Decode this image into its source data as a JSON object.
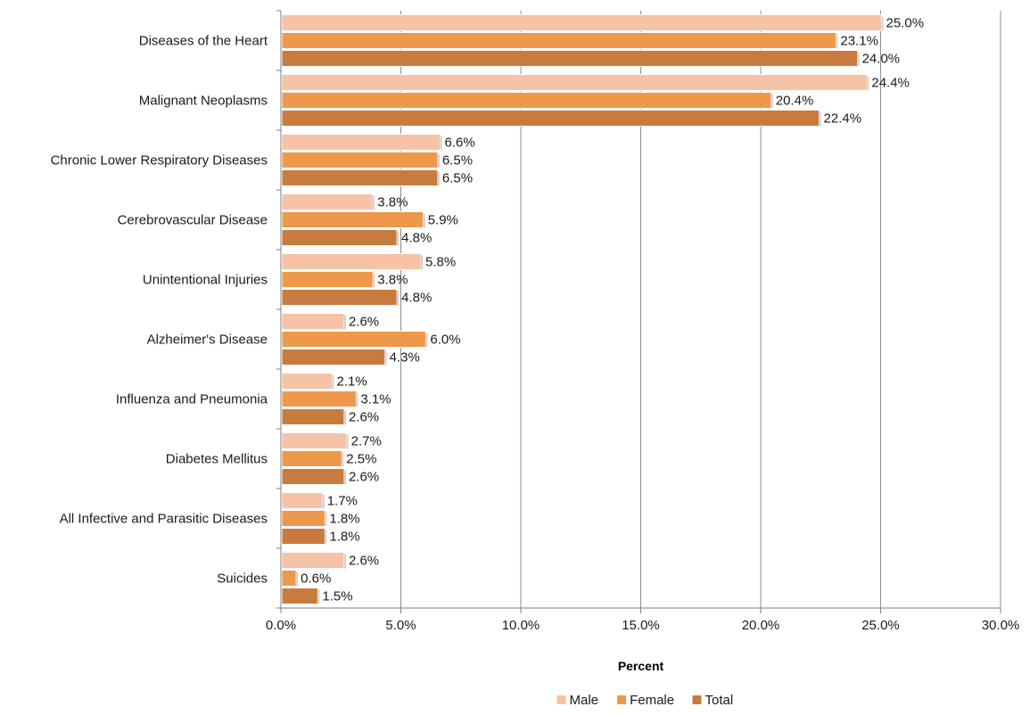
{
  "chart_data": {
    "type": "bar",
    "orientation": "horizontal",
    "categories": [
      "Diseases of the Heart",
      "Malignant Neoplasms",
      "Chronic Lower Respiratory Diseases",
      "Cerebrovascular Disease",
      "Unintentional Injuries",
      "Alzheimer's Disease",
      "Influenza and Pneumonia",
      "Diabetes Mellitus",
      "All Infective and Parasitic Diseases",
      "Suicides"
    ],
    "series": [
      {
        "name": "Male",
        "color": "#F6C3A6",
        "values": [
          25.0,
          24.4,
          6.6,
          3.8,
          5.8,
          2.6,
          2.1,
          2.7,
          1.7,
          2.6
        ],
        "labels": [
          "25.0%",
          "24.4%",
          "6.6%",
          "3.8%",
          "5.8%",
          "2.6%",
          "2.1%",
          "2.7%",
          "1.7%",
          "2.6%"
        ]
      },
      {
        "name": "Female",
        "color": "#EE984B",
        "values": [
          23.1,
          20.4,
          6.5,
          5.9,
          3.8,
          6.0,
          3.1,
          2.5,
          1.8,
          0.6
        ],
        "labels": [
          "23.1%",
          "20.4%",
          "6.5%",
          "5.9%",
          "3.8%",
          "6.0%",
          "3.1%",
          "2.5%",
          "1.8%",
          "0.6%"
        ]
      },
      {
        "name": "Total",
        "color": "#C87B3F",
        "values": [
          24.0,
          22.4,
          6.5,
          4.8,
          4.8,
          4.3,
          2.6,
          2.6,
          1.8,
          1.5
        ],
        "labels": [
          "24.0%",
          "22.4%",
          "6.5%",
          "4.8%",
          "4.8%",
          "4.3%",
          "2.6%",
          "2.6%",
          "1.8%",
          "1.5%"
        ]
      }
    ],
    "xlim": [
      0,
      30
    ],
    "xticks": [
      0,
      5,
      10,
      15,
      20,
      25,
      30
    ],
    "xtick_labels": [
      "0.0%",
      "5.0%",
      "10.0%",
      "15.0%",
      "20.0%",
      "25.0%",
      "30.0%"
    ],
    "xlabel": "Percent",
    "ylabel": "",
    "title": "",
    "grid": "vertical",
    "legend_position": "bottom"
  }
}
